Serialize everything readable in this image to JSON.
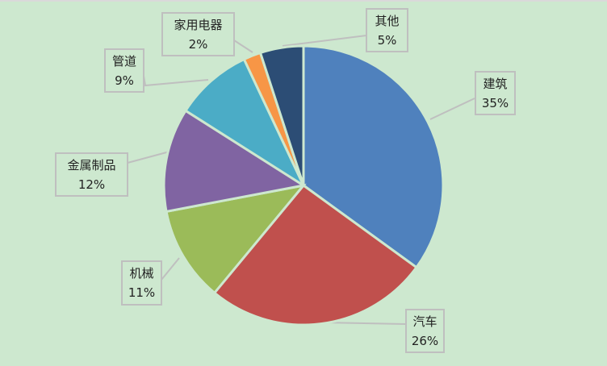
{
  "chart_data": {
    "type": "pie",
    "start": "top",
    "direction": "clockwise",
    "slices": [
      {
        "label": "建筑",
        "value": 35,
        "pct_label": "35%",
        "color": "#4f81bd"
      },
      {
        "label": "汽车",
        "value": 26,
        "pct_label": "26%",
        "color": "#c0504d"
      },
      {
        "label": "机械",
        "value": 11,
        "pct_label": "11%",
        "color": "#9bbb59"
      },
      {
        "label": "金属制品",
        "value": 12,
        "pct_label": "12%",
        "color": "#8064a2"
      },
      {
        "label": "管道",
        "value": 9,
        "pct_label": "9%",
        "color": "#4bacc6"
      },
      {
        "label": "家用电器",
        "value": 2,
        "pct_label": "2%",
        "color": "#f79646"
      },
      {
        "label": "其他",
        "value": 5,
        "pct_label": "5%",
        "color": "#2c4d75"
      }
    ],
    "background": "#cde8cf"
  }
}
